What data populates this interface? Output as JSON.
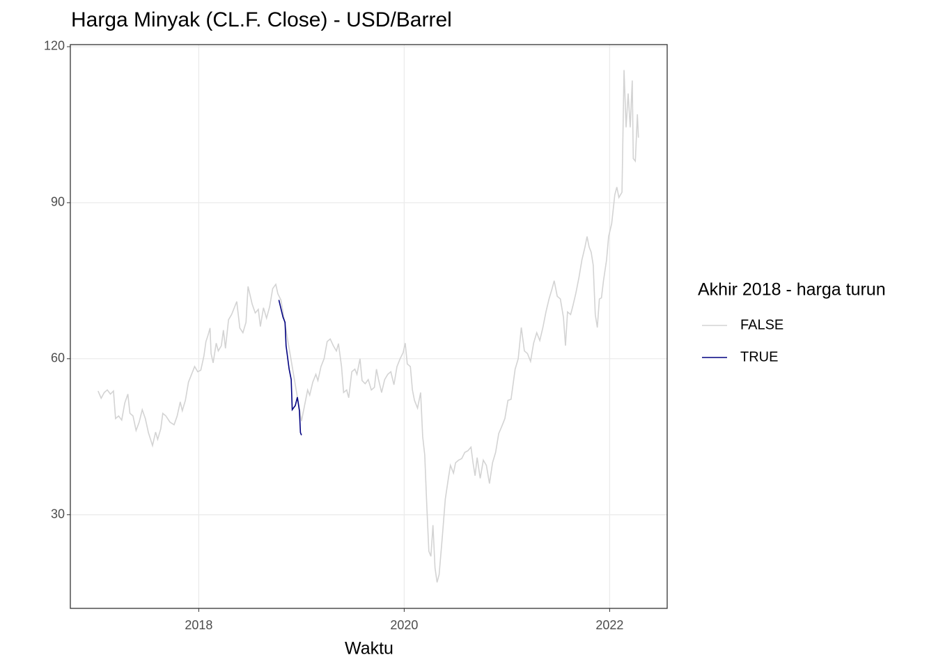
{
  "chart_data": {
    "type": "line",
    "title": "Harga Minyak (CL.F. Close) - USD/Barrel",
    "xlabel": "Waktu",
    "legend_title": "Akhir 2018 - harga turun",
    "legend": "right",
    "grid": true,
    "xlim": [
      2016.75,
      2022.56
    ],
    "xticks": [
      2018,
      2020,
      2022
    ],
    "ylim": [
      12,
      120.4
    ],
    "yticks": [
      30,
      60,
      90,
      120
    ],
    "series": [
      {
        "name": "FALSE",
        "color": "#d3d3d3",
        "x": [
          2017.02,
          2017.05,
          2017.08,
          2017.11,
          2017.14,
          2017.17,
          2017.19,
          2017.22,
          2017.25,
          2017.28,
          2017.31,
          2017.33,
          2017.36,
          2017.39,
          2017.42,
          2017.45,
          2017.48,
          2017.51,
          2017.55,
          2017.58,
          2017.6,
          2017.63,
          2017.65,
          2017.68,
          2017.72,
          2017.76,
          2017.79,
          2017.82,
          2017.84,
          2017.87,
          2017.9,
          2017.93,
          2017.96,
          2017.99,
          2018.02,
          2018.05,
          2018.07,
          2018.09,
          2018.11,
          2018.12,
          2018.14,
          2018.17,
          2018.19,
          2018.22,
          2018.24,
          2018.26,
          2018.29,
          2018.32,
          2018.35,
          2018.37,
          2018.4,
          2018.43,
          2018.46,
          2018.48,
          2018.52,
          2018.55,
          2018.58,
          2018.6,
          2018.63,
          2018.66,
          2018.69,
          2018.72,
          2018.75,
          2018.77,
          2018.8,
          2019.0,
          2019.03,
          2019.06,
          2019.08,
          2019.11,
          2019.14,
          2019.16,
          2019.19,
          2019.22,
          2019.25,
          2019.28,
          2019.31,
          2019.34,
          2019.36,
          2019.39,
          2019.41,
          2019.44,
          2019.46,
          2019.49,
          2019.52,
          2019.54,
          2019.57,
          2019.59,
          2019.62,
          2019.65,
          2019.68,
          2019.71,
          2019.73,
          2019.75,
          2019.78,
          2019.81,
          2019.84,
          2019.87,
          2019.9,
          2019.93,
          2019.96,
          2019.99,
          2020.01,
          2020.03,
          2020.06,
          2020.08,
          2020.1,
          2020.13,
          2020.16,
          2020.18,
          2020.2,
          2020.22,
          2020.24,
          2020.26,
          2020.28,
          2020.3,
          2020.32,
          2020.34,
          2020.37,
          2020.4,
          2020.43,
          2020.45,
          2020.48,
          2020.5,
          2020.53,
          2020.56,
          2020.59,
          2020.62,
          2020.65,
          2020.67,
          2020.69,
          2020.71,
          2020.74,
          2020.77,
          2020.8,
          2020.83,
          2020.86,
          2020.89,
          2020.92,
          2020.95,
          2020.98,
          2021.01,
          2021.04,
          2021.08,
          2021.11,
          2021.14,
          2021.17,
          2021.2,
          2021.23,
          2021.26,
          2021.29,
          2021.32,
          2021.35,
          2021.38,
          2021.41,
          2021.44,
          2021.46,
          2021.49,
          2021.52,
          2021.55,
          2021.57,
          2021.59,
          2021.62,
          2021.64,
          2021.67,
          2021.7,
          2021.73,
          2021.76,
          2021.78,
          2021.8,
          2021.82,
          2021.84,
          2021.86,
          2021.88,
          2021.9,
          2021.92,
          2021.94,
          2021.97,
          2021.99,
          2022.02,
          2022.05,
          2022.07,
          2022.09,
          2022.12,
          2022.14,
          2022.16,
          2022.18,
          2022.2,
          2022.22,
          2022.23,
          2022.25,
          2022.27,
          2022.28
        ],
        "values": [
          53.8,
          52.4,
          53.5,
          54.0,
          53.2,
          53.8,
          48.5,
          49.0,
          48.2,
          51.5,
          53.2,
          49.5,
          49.0,
          46.2,
          47.8,
          50.2,
          48.5,
          45.8,
          43.3,
          45.9,
          44.5,
          46.5,
          49.5,
          49.0,
          47.8,
          47.3,
          49.0,
          51.7,
          50.0,
          52.0,
          55.5,
          57.0,
          58.5,
          57.5,
          57.8,
          60.5,
          63.3,
          64.5,
          65.9,
          61.0,
          59.2,
          63.0,
          61.5,
          62.5,
          65.5,
          62.0,
          67.5,
          68.5,
          70.0,
          71.0,
          65.9,
          65.0,
          67.0,
          73.9,
          70.5,
          68.8,
          69.5,
          66.2,
          69.8,
          67.8,
          70.0,
          73.5,
          74.3,
          72.5,
          71.3,
          48.0,
          51.0,
          54.0,
          53.0,
          55.5,
          57.0,
          55.8,
          58.5,
          60.0,
          63.3,
          63.8,
          62.5,
          61.5,
          62.9,
          58.5,
          53.5,
          54.0,
          52.5,
          57.5,
          58.0,
          57.0,
          60.0,
          55.8,
          55.2,
          56.0,
          54.0,
          54.5,
          58.0,
          56.0,
          53.5,
          56.0,
          57.0,
          57.5,
          55.0,
          58.5,
          60.0,
          61.2,
          63.0,
          59.0,
          58.5,
          54.0,
          52.0,
          50.5,
          53.5,
          45.0,
          41.5,
          31.7,
          23.0,
          22.0,
          28.0,
          19.8,
          17.0,
          18.5,
          25.5,
          33.0,
          37.0,
          39.5,
          38.0,
          40.0,
          40.5,
          40.8,
          42.0,
          42.3,
          43.0,
          40.0,
          37.5,
          41.0,
          37.0,
          40.5,
          39.5,
          36.0,
          40.0,
          42.0,
          45.6,
          47.0,
          48.5,
          52.0,
          52.2,
          58.0,
          60.0,
          66.0,
          61.5,
          61.0,
          59.5,
          63.0,
          65.0,
          63.5,
          66.0,
          69.0,
          71.5,
          73.5,
          75.0,
          72.0,
          71.5,
          68.0,
          62.5,
          69.0,
          68.5,
          70.0,
          72.5,
          75.5,
          79.0,
          81.5,
          83.5,
          81.5,
          80.5,
          78.0,
          68.5,
          66.0,
          71.5,
          71.7,
          75.0,
          79.0,
          83.5,
          86.0,
          91.5,
          93.0,
          91.0,
          92.0,
          115.5,
          104.5,
          111.0,
          104.5,
          113.5,
          98.5,
          98.0,
          107.0,
          102.5
        ]
      },
      {
        "name": "TRUE",
        "color": "#000080",
        "x": [
          2018.78,
          2018.82,
          2018.84,
          2018.85,
          2018.88,
          2018.9,
          2018.91,
          2018.94,
          2018.96,
          2018.98,
          2018.99,
          2019.0
        ],
        "values": [
          71.3,
          68.0,
          67.0,
          62.5,
          58.0,
          56.0,
          50.2,
          51.0,
          52.6,
          50.0,
          45.8,
          45.3
        ]
      }
    ]
  }
}
